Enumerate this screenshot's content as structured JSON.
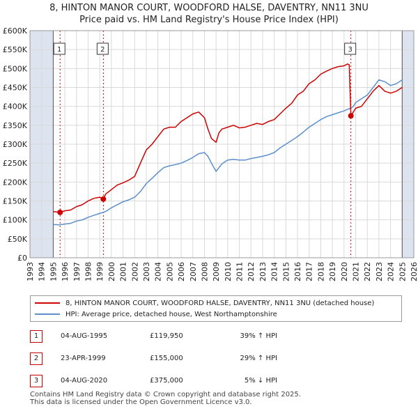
{
  "title_line1": "8, HINTON MANOR COURT, WOODFORD HALSE, DAVENTRY, NN11 3NU",
  "title_line2": "Price paid vs. HM Land Registry's House Price Index (HPI)",
  "colors": {
    "property": "#cc0000",
    "hpi": "#5b8fc9",
    "shade": "#dde4f0",
    "grid": "#d9d9d9"
  },
  "chart_data": {
    "type": "line",
    "xlim": [
      1993,
      2026
    ],
    "ylim": [
      0,
      600000
    ],
    "xticks": [
      "1993",
      "1994",
      "1995",
      "1996",
      "1997",
      "1998",
      "1999",
      "2000",
      "2001",
      "2002",
      "2003",
      "2004",
      "2005",
      "2006",
      "2007",
      "2008",
      "2009",
      "2010",
      "2011",
      "2012",
      "2013",
      "2014",
      "2015",
      "2016",
      "2017",
      "2018",
      "2019",
      "2020",
      "2021",
      "2022",
      "2023",
      "2024",
      "2025",
      "2026"
    ],
    "yticks": [
      {
        "value": 0,
        "label": "£0"
      },
      {
        "value": 50000,
        "label": "£50K"
      },
      {
        "value": 100000,
        "label": "£100K"
      },
      {
        "value": 150000,
        "label": "£150K"
      },
      {
        "value": 200000,
        "label": "£200K"
      },
      {
        "value": 250000,
        "label": "£250K"
      },
      {
        "value": 300000,
        "label": "£300K"
      },
      {
        "value": 350000,
        "label": "£350K"
      },
      {
        "value": 400000,
        "label": "£400K"
      },
      {
        "value": 450000,
        "label": "£450K"
      },
      {
        "value": 500000,
        "label": "£500K"
      },
      {
        "value": 550000,
        "label": "£550K"
      },
      {
        "value": 600000,
        "label": "£600K"
      }
    ],
    "shaded_ranges": [
      [
        1993,
        1995.0
      ],
      [
        2025.0,
        2026
      ]
    ],
    "series": [
      {
        "name": "8, HINTON MANOR COURT, WOODFORD HALSE, DAVENTRY, NN11 3NU (detached house)",
        "color": "#cc0000",
        "x": [
          1995.0,
          1995.59,
          1996,
          1996.5,
          1997,
          1997.5,
          1998,
          1998.5,
          1999.0,
          1999.31,
          1999.5,
          2000,
          2000.5,
          2001,
          2001.5,
          2002,
          2002.5,
          2003,
          2003.5,
          2004,
          2004.5,
          2005,
          2005.5,
          2006,
          2006.5,
          2007,
          2007.5,
          2008,
          2008.3,
          2008.6,
          2009,
          2009.25,
          2009.5,
          2010,
          2010.5,
          2011,
          2011.5,
          2012,
          2012.5,
          2013,
          2013.5,
          2014,
          2014.5,
          2015,
          2015.5,
          2016,
          2016.5,
          2017,
          2017.5,
          2018,
          2018.5,
          2019,
          2019.5,
          2020,
          2020.3,
          2020.45,
          2020.59,
          2020.8,
          2021,
          2021.5,
          2022,
          2022.5,
          2023,
          2023.5,
          2024,
          2024.5,
          2025.0
        ],
        "values": [
          122000,
          119950,
          124000,
          126000,
          135000,
          140000,
          150000,
          157000,
          160000,
          155000,
          168000,
          180000,
          192000,
          198000,
          205000,
          215000,
          250000,
          285000,
          300000,
          320000,
          340000,
          345000,
          345000,
          360000,
          370000,
          380000,
          385000,
          370000,
          340000,
          315000,
          305000,
          330000,
          340000,
          345000,
          350000,
          343000,
          345000,
          350000,
          355000,
          352000,
          360000,
          365000,
          380000,
          395000,
          408000,
          430000,
          440000,
          460000,
          470000,
          485000,
          493000,
          500000,
          505000,
          507000,
          512000,
          510000,
          375000,
          385000,
          395000,
          400000,
          420000,
          440000,
          455000,
          440000,
          435000,
          440000,
          450000
        ]
      },
      {
        "name": "HPI: Average price, detached house, West Northamptonshire",
        "color": "#5b8fc9",
        "x": [
          1995.0,
          1995.5,
          1996,
          1996.5,
          1997,
          1997.5,
          1998,
          1998.5,
          1999,
          1999.5,
          2000,
          2000.5,
          2001,
          2001.5,
          2002,
          2002.5,
          2003,
          2003.5,
          2004,
          2004.5,
          2005,
          2005.5,
          2006,
          2006.5,
          2007,
          2007.5,
          2008,
          2008.3,
          2008.6,
          2009,
          2009.25,
          2009.5,
          2010,
          2010.5,
          2011,
          2011.5,
          2012,
          2012.5,
          2013,
          2013.5,
          2014,
          2014.5,
          2015,
          2015.5,
          2016,
          2016.5,
          2017,
          2017.5,
          2018,
          2018.5,
          2019,
          2019.5,
          2020,
          2020.3,
          2020.59,
          2020.8,
          2021,
          2021.5,
          2022,
          2022.5,
          2023,
          2023.5,
          2024,
          2024.5,
          2025.0
        ],
        "values": [
          88000,
          87000,
          89000,
          91000,
          97000,
          100000,
          107000,
          112000,
          117000,
          122000,
          132000,
          140000,
          148000,
          153000,
          160000,
          175000,
          196000,
          210000,
          225000,
          238000,
          243000,
          246000,
          250000,
          257000,
          265000,
          275000,
          278000,
          268000,
          250000,
          228000,
          238000,
          248000,
          258000,
          260000,
          258000,
          258000,
          262000,
          265000,
          268000,
          272000,
          278000,
          290000,
          300000,
          310000,
          320000,
          332000,
          345000,
          355000,
          365000,
          373000,
          378000,
          383000,
          388000,
          392000,
          395000,
          400000,
          410000,
          420000,
          430000,
          450000,
          470000,
          465000,
          455000,
          460000,
          470000
        ]
      }
    ],
    "sale_markers": [
      {
        "label": "1",
        "x": 1995.59,
        "value": 119950
      },
      {
        "label": "2",
        "x": 1999.31,
        "value": 155000
      },
      {
        "label": "3",
        "x": 2020.59,
        "value": 375000
      }
    ]
  },
  "legend": [
    {
      "label": "8, HINTON MANOR COURT, WOODFORD HALSE, DAVENTRY, NN11 3NU (detached house)"
    },
    {
      "label": "HPI: Average price, detached house, West Northamptonshire"
    }
  ],
  "transactions": [
    {
      "num": "1",
      "date": "04-AUG-1995",
      "price": "£119,950",
      "hpi": "39% ↑ HPI"
    },
    {
      "num": "2",
      "date": "23-APR-1999",
      "price": "£155,000",
      "hpi": "29% ↑ HPI"
    },
    {
      "num": "3",
      "date": "04-AUG-2020",
      "price": "£375,000",
      "hpi": "5% ↓ HPI"
    }
  ],
  "footer_line1": "Contains HM Land Registry data © Crown copyright and database right 2025.",
  "footer_line2": "This data is licensed under the Open Government Licence v3.0."
}
